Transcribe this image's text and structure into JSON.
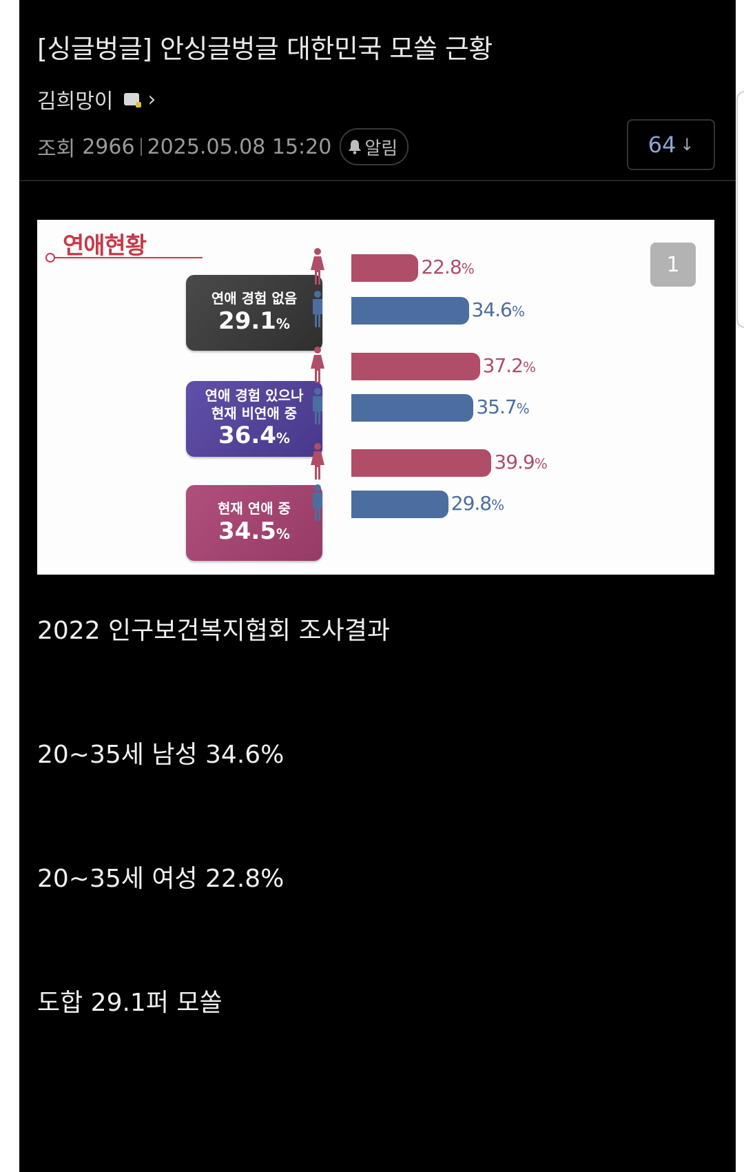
{
  "post": {
    "title": "[싱글벙글] 안싱글벙글 대한민국 모쏠 근황",
    "author": "김희망이",
    "author_level_icon": "level-badge-icon",
    "views_label": "조회",
    "views": "2966",
    "datetime": "2025.05.08 15:20",
    "alarm_label": "알림",
    "comment_count": "64",
    "comment_arrow": "↓"
  },
  "image": {
    "title": "연애현황",
    "page_badge": "1",
    "colors": {
      "female": "#b04d68",
      "male": "#4c6da0",
      "female_text": "#b04d68",
      "male_text": "#4c6da0",
      "box_none": "#3f3f3f",
      "box_past": "#5b4a9e",
      "box_current": "#a94574"
    }
  },
  "chart_data": {
    "type": "bar",
    "title": "연애현황",
    "orientation": "horizontal",
    "categories": [
      "연애 경험 없음",
      "연애 경험 있으나 현재 비연애 중",
      "현재 연애 중"
    ],
    "totals": [
      29.1,
      36.4,
      34.5
    ],
    "series": [
      {
        "name": "여성",
        "values": [
          22.8,
          37.2,
          39.9
        ]
      },
      {
        "name": "남성",
        "values": [
          34.6,
          35.7,
          29.8
        ]
      }
    ],
    "unit": "%",
    "groups": [
      {
        "label": "연애 경험 없음",
        "total": "29.1",
        "female": "22.8",
        "male": "34.6"
      },
      {
        "label": "연애 경험 있으나\n현재 비연애 중",
        "total": "36.4",
        "female": "37.2",
        "male": "35.7"
      },
      {
        "label": "현재 연애 중",
        "total": "34.5",
        "female": "39.9",
        "male": "29.8"
      }
    ],
    "xlabel": "",
    "ylabel": "",
    "grid": false,
    "legend": "icons (female/male)"
  },
  "body": {
    "lines": [
      "2022 인구보건복지협회 조사결과",
      "20~35세 남성 34.6%",
      "20~35세 여성 22.8%",
      "도합 29.1퍼 모쏠"
    ]
  },
  "pct": "%"
}
